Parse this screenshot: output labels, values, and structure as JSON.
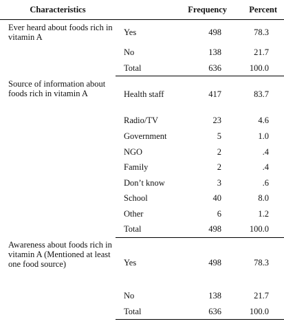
{
  "header": {
    "characteristics": "Characteristics",
    "frequency": "Frequency",
    "percent": "Percent"
  },
  "groups": [
    {
      "label": "Ever heard about foods rich in vitamin A",
      "rows": [
        {
          "response": "Yes",
          "frequency": "498",
          "percent": "78.3"
        },
        {
          "response": "No",
          "frequency": "138",
          "percent": "21.7"
        },
        {
          "response": "Total",
          "frequency": "636",
          "percent": "100.0"
        }
      ]
    },
    {
      "label": "Source of information about foods rich in vitamin A",
      "rows": [
        {
          "response": "Health staff",
          "frequency": "417",
          "percent": "83.7"
        },
        {
          "response": "Radio/TV",
          "frequency": "23",
          "percent": "4.6"
        },
        {
          "response": "Government",
          "frequency": "5",
          "percent": "1.0"
        },
        {
          "response": "NGO",
          "frequency": "2",
          "percent": ".4"
        },
        {
          "response": "Family",
          "frequency": "2",
          "percent": ".4"
        },
        {
          "response": "Don’t know",
          "frequency": "3",
          "percent": ".6"
        },
        {
          "response": "School",
          "frequency": "40",
          "percent": "8.0"
        },
        {
          "response": "Other",
          "frequency": "6",
          "percent": "1.2"
        },
        {
          "response": "Total",
          "frequency": "498",
          "percent": "100.0"
        }
      ]
    },
    {
      "label": "Awareness about foods rich in vitamin A (Mentioned at least one food source)",
      "rows": [
        {
          "response": "Yes",
          "frequency": "498",
          "percent": "78.3"
        },
        {
          "response": "No",
          "frequency": "138",
          "percent": "21.7"
        },
        {
          "response": "Total",
          "frequency": "636",
          "percent": "100.0"
        }
      ]
    }
  ]
}
